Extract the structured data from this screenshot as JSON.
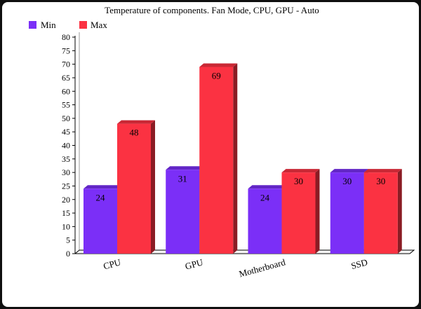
{
  "chart_data": {
    "type": "bar",
    "title": "Temperature of components.  Fan Mode, CPU, GPU - Auto",
    "categories": [
      "CPU",
      "GPU",
      "Motherboard",
      "SSD"
    ],
    "series": [
      {
        "name": "Min",
        "values": [
          24,
          31,
          24,
          30
        ],
        "color": "#7b2ff7"
      },
      {
        "name": "Max",
        "values": [
          48,
          69,
          30,
          30
        ],
        "color": "#fb3242"
      }
    ],
    "xlabel": "",
    "ylabel": "",
    "ylim": [
      0,
      80
    ],
    "yticks": [
      0,
      5,
      10,
      15,
      20,
      25,
      30,
      35,
      40,
      45,
      50,
      55,
      60,
      65,
      70,
      75,
      80
    ],
    "grid": false,
    "legend": "top-left",
    "data_labels": true
  }
}
